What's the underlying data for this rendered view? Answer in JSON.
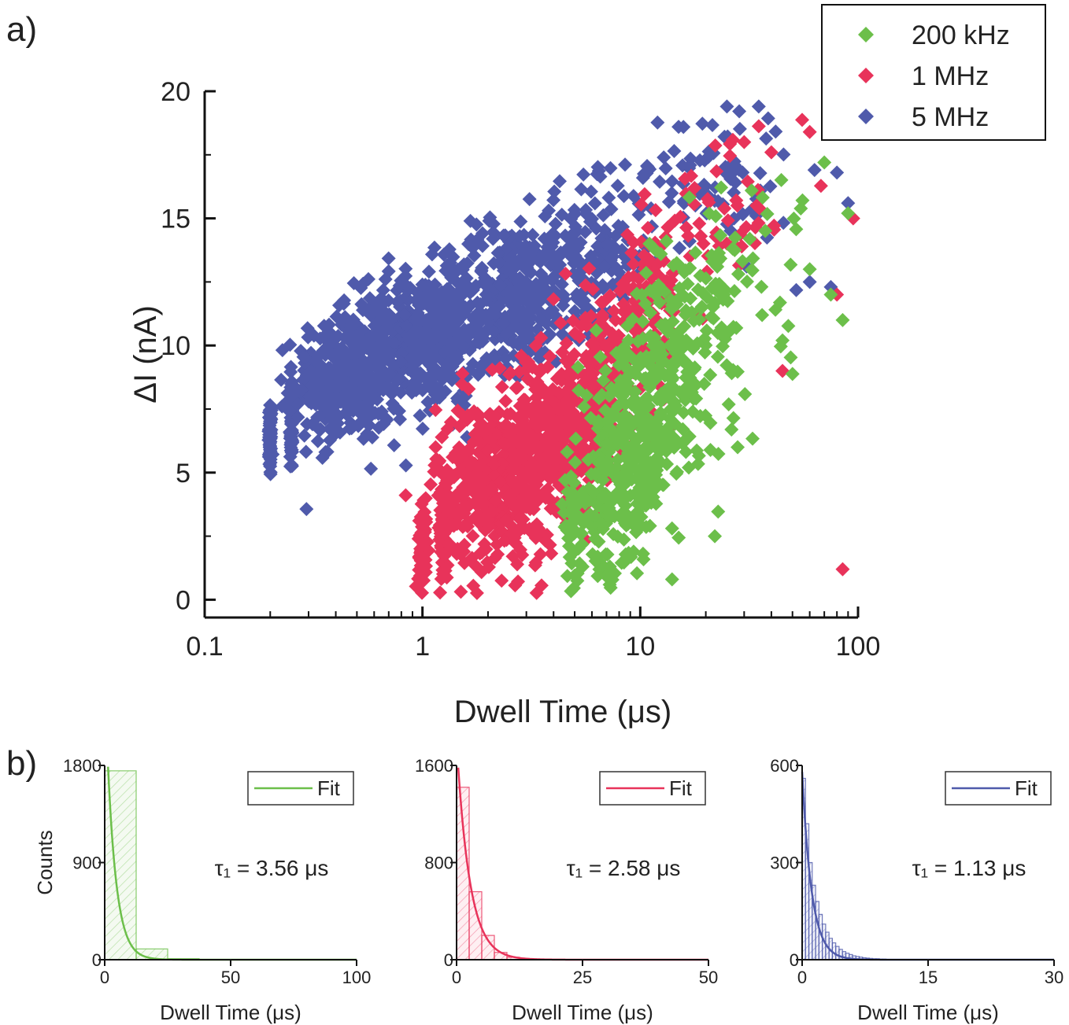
{
  "panel_a_label": "a)",
  "panel_b_label": "b)",
  "chart_data": [
    {
      "type": "scatter",
      "panel": "a",
      "xlabel": "Dwell Time (μs)",
      "ylabel": "ΔI (nA)",
      "xscale": "log",
      "xlim": [
        0.1,
        100
      ],
      "ylim": [
        -0.7,
        20
      ],
      "xticks": [
        0.1,
        1,
        10,
        100
      ],
      "xtick_labels": [
        "0.1",
        "1",
        "10",
        "100"
      ],
      "yticks": [
        0,
        5,
        10,
        15,
        20
      ],
      "ytick_labels": [
        "0",
        "5",
        "10",
        "15",
        "20"
      ],
      "legend_position": "top-right",
      "marker": "diamond",
      "series": [
        {
          "name": "200 kHz",
          "color": "#6cbf4a",
          "clusters": [
            {
              "x": 5.0,
              "y": 3.0,
              "sx": 0.03,
              "sy": 1.3,
              "n": 60
            },
            {
              "x": 6.5,
              "y": 3.8,
              "sx": 0.03,
              "sy": 1.6,
              "n": 60
            },
            {
              "x": 9.0,
              "y": 5.5,
              "sx": 0.08,
              "sy": 2.2,
              "n": 260
            },
            {
              "x": 13.0,
              "y": 8.0,
              "sx": 0.08,
              "sy": 2.0,
              "n": 140
            },
            {
              "x": 18.0,
              "y": 10.5,
              "sx": 0.1,
              "sy": 2.0,
              "n": 90
            },
            {
              "x": 30.0,
              "y": 13.0,
              "sx": 0.16,
              "sy": 2.0,
              "n": 50
            }
          ],
          "outliers": [
            [
              14,
              0.8
            ],
            [
              22,
              2.5
            ],
            [
              28,
              6.0
            ],
            [
              45,
              10.2
            ],
            [
              60,
              13.0
            ],
            [
              70,
              17.2
            ],
            [
              90,
              15.2
            ],
            [
              85,
              11.0
            ],
            [
              75,
              12.0
            ]
          ]
        },
        {
          "name": "1 MHz",
          "color": "#e8335a",
          "clusters": [
            {
              "x": 1.0,
              "y": 2.0,
              "sx": 0.01,
              "sy": 0.8,
              "n": 70
            },
            {
              "x": 1.25,
              "y": 2.7,
              "sx": 0.01,
              "sy": 1.1,
              "n": 70
            },
            {
              "x": 2.2,
              "y": 4.5,
              "sx": 0.14,
              "sy": 1.6,
              "n": 450
            },
            {
              "x": 4.0,
              "y": 6.5,
              "sx": 0.13,
              "sy": 1.6,
              "n": 320
            },
            {
              "x": 7.0,
              "y": 9.0,
              "sx": 0.12,
              "sy": 1.6,
              "n": 200
            },
            {
              "x": 11.0,
              "y": 12.0,
              "sx": 0.1,
              "sy": 1.3,
              "n": 90
            },
            {
              "x": 25.0,
              "y": 15.5,
              "sx": 0.18,
              "sy": 1.5,
              "n": 50
            }
          ],
          "outliers": [
            [
              85,
              1.2
            ],
            [
              95,
              15.0
            ],
            [
              40,
              17.6
            ],
            [
              30,
              18.0
            ],
            [
              60,
              18.4
            ],
            [
              45,
              9.0
            ],
            [
              80,
              12.0
            ]
          ]
        },
        {
          "name": "5 MHz",
          "color": "#4f5aab",
          "clusters": [
            {
              "x": 0.2,
              "y": 6.3,
              "sx": 0.004,
              "sy": 0.8,
              "n": 60
            },
            {
              "x": 0.25,
              "y": 7.0,
              "sx": 0.004,
              "sy": 1.0,
              "n": 60
            },
            {
              "x": 0.45,
              "y": 8.6,
              "sx": 0.12,
              "sy": 1.2,
              "n": 380
            },
            {
              "x": 1.0,
              "y": 10.3,
              "sx": 0.15,
              "sy": 1.3,
              "n": 420
            },
            {
              "x": 2.5,
              "y": 12.0,
              "sx": 0.15,
              "sy": 1.4,
              "n": 320
            },
            {
              "x": 6.0,
              "y": 13.5,
              "sx": 0.14,
              "sy": 1.4,
              "n": 170
            },
            {
              "x": 20.0,
              "y": 16.5,
              "sx": 0.2,
              "sy": 1.5,
              "n": 90
            }
          ],
          "outliers": [
            [
              60,
              12.5
            ],
            [
              80,
              16.8
            ],
            [
              90,
              15.6
            ],
            [
              75,
              12.3
            ],
            [
              35,
              19.4
            ],
            [
              25,
              19.4
            ],
            [
              15,
              18.6
            ]
          ]
        }
      ]
    },
    {
      "type": "bar",
      "panel": "b1",
      "xlabel": "Dwell Time (μs)",
      "ylabel": "Counts",
      "xlim": [
        0,
        100
      ],
      "ylim": [
        0,
        1800
      ],
      "xticks": [
        0,
        50,
        100
      ],
      "xtick_labels": [
        "0",
        "50",
        "100"
      ],
      "yticks": [
        0,
        900,
        1800
      ],
      "ytick_labels": [
        "0",
        "900",
        "1800"
      ],
      "color": "#6cbf4a",
      "bin_edges": [
        0,
        12.5,
        25,
        37.5
      ],
      "counts": [
        1750,
        100,
        10
      ],
      "fit": {
        "name": "Fit",
        "tau": 3.56,
        "amplitude": 2600,
        "offset": 0
      },
      "annotation": "τ₁ = 3.56 μs",
      "legend_position": "top-right"
    },
    {
      "type": "bar",
      "panel": "b2",
      "xlabel": "Dwell Time (μs)",
      "ylabel": "",
      "xlim": [
        0,
        50
      ],
      "ylim": [
        0,
        1600
      ],
      "xticks": [
        0,
        25,
        50
      ],
      "xtick_labels": [
        "0",
        "25",
        "50"
      ],
      "yticks": [
        0,
        800,
        1600
      ],
      "ytick_labels": [
        "0",
        "800",
        "1600"
      ],
      "color": "#e8335a",
      "bin_edges": [
        0,
        2.5,
        5,
        7.5,
        10,
        12.5,
        15
      ],
      "counts": [
        1420,
        560,
        200,
        60,
        20,
        8
      ],
      "fit": {
        "name": "Fit",
        "tau": 2.58,
        "amplitude": 1800,
        "offset": 0
      },
      "annotation": "τ₁ = 2.58 μs",
      "legend_position": "top-right"
    },
    {
      "type": "bar",
      "panel": "b3",
      "xlabel": "Dwell Time (μs)",
      "ylabel": "",
      "xlim": [
        0,
        30
      ],
      "ylim": [
        0,
        600
      ],
      "xticks": [
        0,
        15,
        30
      ],
      "xtick_labels": [
        "0",
        "15",
        "30"
      ],
      "yticks": [
        0,
        300,
        600
      ],
      "ytick_labels": [
        "0",
        "300",
        "600"
      ],
      "color": "#4f5aab",
      "bin_edges": [
        0,
        0.4,
        0.8,
        1.2,
        1.6,
        2.0,
        2.4,
        2.8,
        3.2,
        3.6,
        4.0,
        4.4,
        4.8,
        5.2,
        5.6,
        6.0,
        6.4,
        6.8,
        7.2,
        7.6,
        8.0,
        8.4,
        8.8,
        9.2,
        9.6,
        10.0
      ],
      "counts": [
        560,
        420,
        300,
        230,
        180,
        140,
        110,
        85,
        66,
        52,
        41,
        32,
        25,
        20,
        16,
        12,
        10,
        8,
        6,
        5,
        4,
        3,
        3,
        2,
        2
      ],
      "fit": {
        "name": "Fit",
        "tau": 1.13,
        "amplitude": 580,
        "offset": 0
      },
      "annotation": "τ₁ = 1.13 μs",
      "legend_position": "top-right"
    }
  ]
}
